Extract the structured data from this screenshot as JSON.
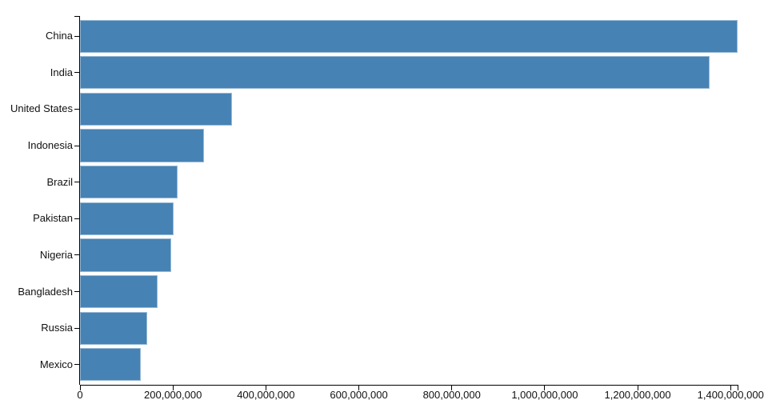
{
  "chart_data": {
    "type": "bar",
    "orientation": "horizontal",
    "title": "",
    "xlabel": "",
    "ylabel": "",
    "grid": false,
    "legend": false,
    "categories": [
      "China",
      "India",
      "United States",
      "Indonesia",
      "Brazil",
      "Pakistan",
      "Nigeria",
      "Bangladesh",
      "Russia",
      "Mexico"
    ],
    "values": [
      1415045928,
      1354051854,
      326766748,
      266794980,
      210867954,
      200813818,
      195875237,
      166368149,
      143964709,
      130759074
    ],
    "xlim": [
      0,
      1415045928
    ],
    "x_ticks": [
      0,
      200000000,
      400000000,
      600000000,
      800000000,
      1000000000,
      1200000000,
      1400000000
    ],
    "x_tick_labels": [
      "0",
      "200,000,000",
      "400,000,000",
      "600,000,000",
      "800,000,000",
      "1,000,000,000",
      "1,200,000,000",
      "1,400,000,000"
    ],
    "colors": {
      "bar_fill": "#4682b4",
      "bar_edge": "#b7d0e4",
      "axis": "#000000",
      "tick_text": "#111111",
      "background": "#ffffff"
    }
  }
}
